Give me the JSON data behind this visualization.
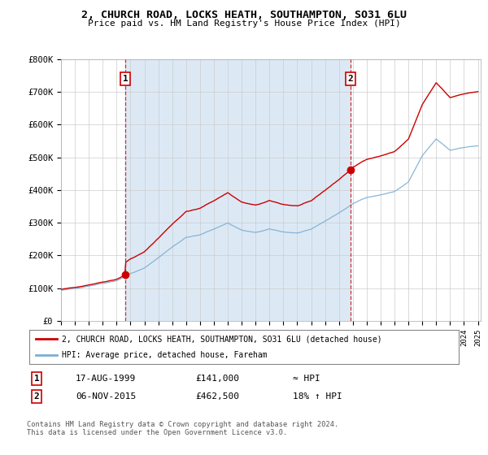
{
  "title_line1": "2, CHURCH ROAD, LOCKS HEATH, SOUTHAMPTON, SO31 6LU",
  "title_line2": "Price paid vs. HM Land Registry's House Price Index (HPI)",
  "ylim": [
    0,
    800000
  ],
  "yticks": [
    0,
    100000,
    200000,
    300000,
    400000,
    500000,
    600000,
    700000,
    800000
  ],
  "ytick_labels": [
    "£0",
    "£100K",
    "£200K",
    "£300K",
    "£400K",
    "£500K",
    "£600K",
    "£700K",
    "£800K"
  ],
  "sale1_date": 1999.63,
  "sale1_price": 141000,
  "sale2_date": 2015.85,
  "sale2_price": 462500,
  "legend_line1": "2, CHURCH ROAD, LOCKS HEATH, SOUTHAMPTON, SO31 6LU (detached house)",
  "legend_line2": "HPI: Average price, detached house, Fareham",
  "table_row1": [
    "1",
    "17-AUG-1999",
    "£141,000",
    "≈ HPI"
  ],
  "table_row2": [
    "2",
    "06-NOV-2015",
    "£462,500",
    "18% ↑ HPI"
  ],
  "footnote": "Contains HM Land Registry data © Crown copyright and database right 2024.\nThis data is licensed under the Open Government Licence v3.0.",
  "hpi_color": "#7bafd4",
  "price_color": "#cc0000",
  "dashed_line_color": "#cc0000",
  "fill_color": "#dce9f5",
  "background_color": "#ffffff",
  "grid_color": "#cccccc",
  "label_box_color": "#cc0000"
}
